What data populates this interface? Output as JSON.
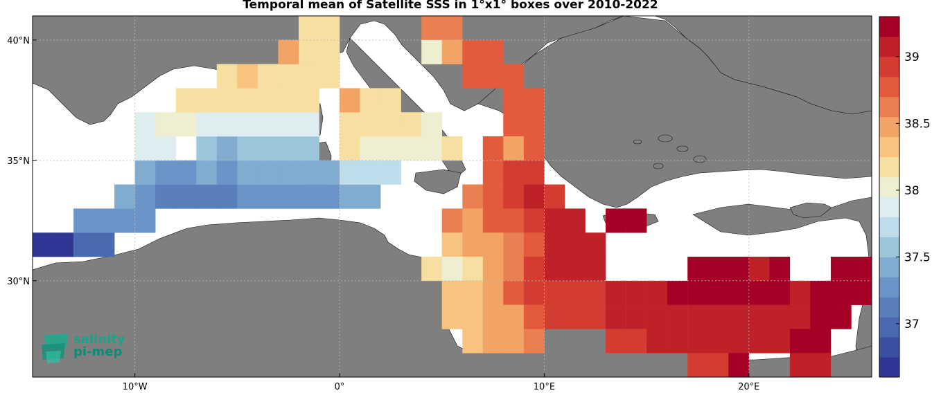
{
  "title": "Temporal mean of Satellite SSS in 1°x1° boxes over 2010-2022",
  "logo": {
    "line1": "salinity",
    "line2": "pi-mep",
    "icon": "salinity-logo-icon"
  },
  "axes": {
    "lat_ticks": [
      {
        "value": 40,
        "label": "40°N"
      },
      {
        "value": 35,
        "label": "35°N"
      },
      {
        "value": 30,
        "label": "30°N"
      }
    ],
    "lon_ticks": [
      {
        "value": -10,
        "label": "10°W"
      },
      {
        "value": 0,
        "label": "0°"
      },
      {
        "value": 10,
        "label": "10°E"
      },
      {
        "value": 20,
        "label": "20°E"
      }
    ]
  },
  "colorbar": {
    "vmin": 36.6,
    "vmax": 39.3,
    "n_levels": 18,
    "ticks": [
      {
        "value": 37,
        "label": "37"
      },
      {
        "value": 37.5,
        "label": "37.5"
      },
      {
        "value": 38,
        "label": "38"
      },
      {
        "value": 38.5,
        "label": "38.5"
      },
      {
        "value": 39,
        "label": "39"
      }
    ],
    "colors": [
      "#313695",
      "#3b4ea0",
      "#4a69b0",
      "#5a7fbd",
      "#6b95c8",
      "#7faccf",
      "#9bc6dc",
      "#bdddea",
      "#deeef0",
      "#eeeed0",
      "#f6dfa0",
      "#f7c37f",
      "#f2a467",
      "#ea7f52",
      "#e35a3d",
      "#d33c30",
      "#bf2129",
      "#a50026"
    ]
  },
  "colors": {
    "land": "#7f7f7f",
    "sea": "#ffffff",
    "grid": "#bbbbbb"
  },
  "chart_data": {
    "type": "heatmap",
    "title": "Temporal mean of Satellite SSS in 1°x1° boxes over 2010-2022",
    "xlabel": "",
    "ylabel": "",
    "xlim": [
      -15,
      26
    ],
    "ylim": [
      26,
      41
    ],
    "cell_size_deg": 1,
    "note_units": "",
    "cells": [
      [
        -15,
        31,
        36.6
      ],
      [
        -14,
        31,
        36.6
      ],
      [
        -13,
        31,
        37.0
      ],
      [
        -12,
        31,
        37.05
      ],
      [
        -13,
        32,
        37.2
      ],
      [
        -12,
        32,
        37.2
      ],
      [
        -11,
        32,
        37.3
      ],
      [
        -10,
        32,
        37.2
      ],
      [
        -11,
        33,
        37.35
      ],
      [
        -10,
        33,
        37.2
      ],
      [
        -9,
        33,
        37.15
      ],
      [
        -8,
        33,
        37.15
      ],
      [
        -7,
        33,
        37.15
      ],
      [
        -6,
        33,
        37.15
      ],
      [
        -5,
        33,
        37.2
      ],
      [
        -4,
        33,
        37.2
      ],
      [
        -3,
        33,
        37.2
      ],
      [
        -2,
        33,
        37.25
      ],
      [
        -1,
        33,
        37.3
      ],
      [
        0,
        33,
        37.45
      ],
      [
        1,
        33,
        37.45
      ],
      [
        -10,
        34,
        37.4
      ],
      [
        -9,
        34,
        37.3
      ],
      [
        -8,
        34,
        37.3
      ],
      [
        -7,
        34,
        37.35
      ],
      [
        -6,
        34,
        37.3
      ],
      [
        -5,
        34,
        37.35
      ],
      [
        -4,
        34,
        37.35
      ],
      [
        -3,
        34,
        37.4
      ],
      [
        -2,
        34,
        37.4
      ],
      [
        -1,
        34,
        37.4
      ],
      [
        0,
        34,
        37.8
      ],
      [
        1,
        34,
        37.7
      ],
      [
        2,
        34,
        37.7
      ],
      [
        -10,
        35,
        37.9
      ],
      [
        -9,
        35,
        37.9
      ],
      [
        -7,
        35,
        37.5
      ],
      [
        -6,
        35,
        37.4
      ],
      [
        -5,
        35,
        37.5
      ],
      [
        -4,
        35,
        37.5
      ],
      [
        -3,
        35,
        37.5
      ],
      [
        -2,
        35,
        37.5
      ],
      [
        0,
        35,
        38.15
      ],
      [
        1,
        35,
        38.0
      ],
      [
        2,
        35,
        38.0
      ],
      [
        3,
        35,
        38.0
      ],
      [
        4,
        35,
        38.0
      ],
      [
        5,
        35,
        38.2
      ],
      [
        -10,
        36,
        37.9
      ],
      [
        -9,
        36,
        38.0
      ],
      [
        -8,
        36,
        38.0
      ],
      [
        -7,
        36,
        37.9
      ],
      [
        -6,
        36,
        37.9
      ],
      [
        -5,
        36,
        37.9
      ],
      [
        -4,
        36,
        37.9
      ],
      [
        -3,
        36,
        37.85
      ],
      [
        -2,
        36,
        37.85
      ],
      [
        0,
        36,
        38.2
      ],
      [
        1,
        36,
        38.2
      ],
      [
        2,
        36,
        38.2
      ],
      [
        3,
        36,
        38.2
      ],
      [
        4,
        36,
        38.0
      ],
      [
        -8,
        37,
        38.2
      ],
      [
        -7,
        37,
        38.2
      ],
      [
        -6,
        37,
        38.2
      ],
      [
        -5,
        37,
        38.2
      ],
      [
        -4,
        37,
        38.1
      ],
      [
        -3,
        37,
        38.2
      ],
      [
        -2,
        37,
        38.2
      ],
      [
        0,
        37,
        38.45
      ],
      [
        1,
        37,
        38.2
      ],
      [
        2,
        37,
        38.2
      ],
      [
        -6,
        38,
        38.2
      ],
      [
        -5,
        38,
        38.35
      ],
      [
        -4,
        38,
        38.2
      ],
      [
        -3,
        38,
        38.2
      ],
      [
        -2,
        38,
        38.2
      ],
      [
        -1,
        38,
        38.2
      ],
      [
        -3,
        39,
        38.4
      ],
      [
        -2,
        39,
        38.2
      ],
      [
        -1,
        39,
        38.2
      ],
      [
        -1,
        40,
        38.2
      ],
      [
        -2,
        40,
        38.2
      ],
      [
        4,
        40,
        38.6
      ],
      [
        5,
        40,
        38.6
      ],
      [
        4,
        39,
        38.0
      ],
      [
        5,
        39,
        38.45
      ],
      [
        6,
        39,
        38.7
      ],
      [
        7,
        39,
        38.7
      ],
      [
        6,
        38,
        38.75
      ],
      [
        7,
        38,
        38.75
      ],
      [
        8,
        38,
        38.75
      ],
      [
        8,
        37,
        38.8
      ],
      [
        9,
        37,
        38.8
      ],
      [
        8,
        36,
        38.8
      ],
      [
        9,
        36,
        38.8
      ],
      [
        7,
        35,
        38.8
      ],
      [
        8,
        35,
        38.55
      ],
      [
        9,
        35,
        38.8
      ],
      [
        7,
        34,
        38.8
      ],
      [
        8,
        34,
        38.9
      ],
      [
        9,
        34,
        38.9
      ],
      [
        6,
        33,
        38.65
      ],
      [
        7,
        33,
        38.8
      ],
      [
        8,
        33,
        38.9
      ],
      [
        9,
        33,
        39.0
      ],
      [
        10,
        33,
        38.9
      ],
      [
        5,
        32,
        38.6
      ],
      [
        6,
        32,
        38.55
      ],
      [
        7,
        32,
        38.7
      ],
      [
        8,
        32,
        38.8
      ],
      [
        9,
        32,
        38.9
      ],
      [
        10,
        32,
        39.0
      ],
      [
        11,
        32,
        39.0
      ],
      [
        13,
        32,
        39.25
      ],
      [
        14,
        32,
        39.25
      ],
      [
        5,
        31,
        38.3
      ],
      [
        6,
        31,
        38.4
      ],
      [
        7,
        31,
        38.55
      ],
      [
        8,
        31,
        38.65
      ],
      [
        9,
        31,
        38.8
      ],
      [
        10,
        31,
        39.05
      ],
      [
        11,
        31,
        39.05
      ],
      [
        12,
        31,
        39.05
      ],
      [
        4,
        30,
        38.2
      ],
      [
        5,
        30,
        38.0
      ],
      [
        6,
        30,
        38.2
      ],
      [
        7,
        30,
        38.4
      ],
      [
        8,
        30,
        38.6
      ],
      [
        9,
        30,
        38.85
      ],
      [
        10,
        30,
        39.05
      ],
      [
        11,
        30,
        39.05
      ],
      [
        12,
        30,
        39.05
      ],
      [
        17,
        30,
        39.15
      ],
      [
        18,
        30,
        39.15
      ],
      [
        19,
        30,
        39.15
      ],
      [
        20,
        30,
        39.1
      ],
      [
        21,
        30,
        39.15
      ],
      [
        24,
        30,
        39.15
      ],
      [
        25,
        30,
        39.2
      ],
      [
        5,
        29,
        38.25
      ],
      [
        6,
        29,
        38.3
      ],
      [
        7,
        29,
        38.45
      ],
      [
        8,
        29,
        38.7
      ],
      [
        9,
        29,
        38.95
      ],
      [
        10,
        29,
        38.95
      ],
      [
        11,
        29,
        38.95
      ],
      [
        12,
        29,
        38.95
      ],
      [
        13,
        29,
        39.05
      ],
      [
        14,
        29,
        39.1
      ],
      [
        15,
        29,
        39.1
      ],
      [
        16,
        29,
        39.2
      ],
      [
        17,
        29,
        39.25
      ],
      [
        18,
        29,
        39.25
      ],
      [
        19,
        29,
        39.15
      ],
      [
        20,
        29,
        39.25
      ],
      [
        21,
        29,
        39.25
      ],
      [
        22,
        29,
        39.1
      ],
      [
        23,
        29,
        39.2
      ],
      [
        24,
        29,
        39.2
      ],
      [
        25,
        29,
        39.2
      ],
      [
        5,
        28,
        38.3
      ],
      [
        6,
        28,
        38.35
      ],
      [
        7,
        28,
        38.4
      ],
      [
        8,
        28,
        38.5
      ],
      [
        9,
        28,
        38.8
      ],
      [
        10,
        28,
        38.85
      ],
      [
        11,
        28,
        38.85
      ],
      [
        12,
        28,
        38.85
      ],
      [
        13,
        28,
        39.05
      ],
      [
        14,
        28,
        39.05
      ],
      [
        15,
        28,
        39.1
      ],
      [
        16,
        28,
        39.1
      ],
      [
        17,
        28,
        39.1
      ],
      [
        18,
        28,
        39.1
      ],
      [
        19,
        28,
        39.1
      ],
      [
        20,
        28,
        39.1
      ],
      [
        21,
        28,
        39.05
      ],
      [
        22,
        28,
        39.05
      ],
      [
        23,
        28,
        39.2
      ],
      [
        24,
        28,
        39.2
      ],
      [
        6,
        27,
        38.35
      ],
      [
        7,
        27,
        38.45
      ],
      [
        8,
        27,
        38.5
      ],
      [
        9,
        27,
        38.65
      ],
      [
        13,
        27,
        38.9
      ],
      [
        14,
        27,
        38.95
      ],
      [
        15,
        27,
        39.05
      ],
      [
        16,
        27,
        39.05
      ],
      [
        17,
        27,
        39.05
      ],
      [
        18,
        27,
        39.1
      ],
      [
        19,
        27,
        39.1
      ],
      [
        20,
        27,
        39.1
      ],
      [
        21,
        27,
        39.0
      ],
      [
        22,
        27,
        39.15
      ],
      [
        23,
        27,
        39.15
      ],
      [
        17,
        26,
        38.85
      ],
      [
        18,
        26,
        38.95
      ],
      [
        19,
        26,
        39.15
      ],
      [
        22,
        26,
        39.1
      ],
      [
        23,
        26,
        39.05
      ]
    ]
  }
}
